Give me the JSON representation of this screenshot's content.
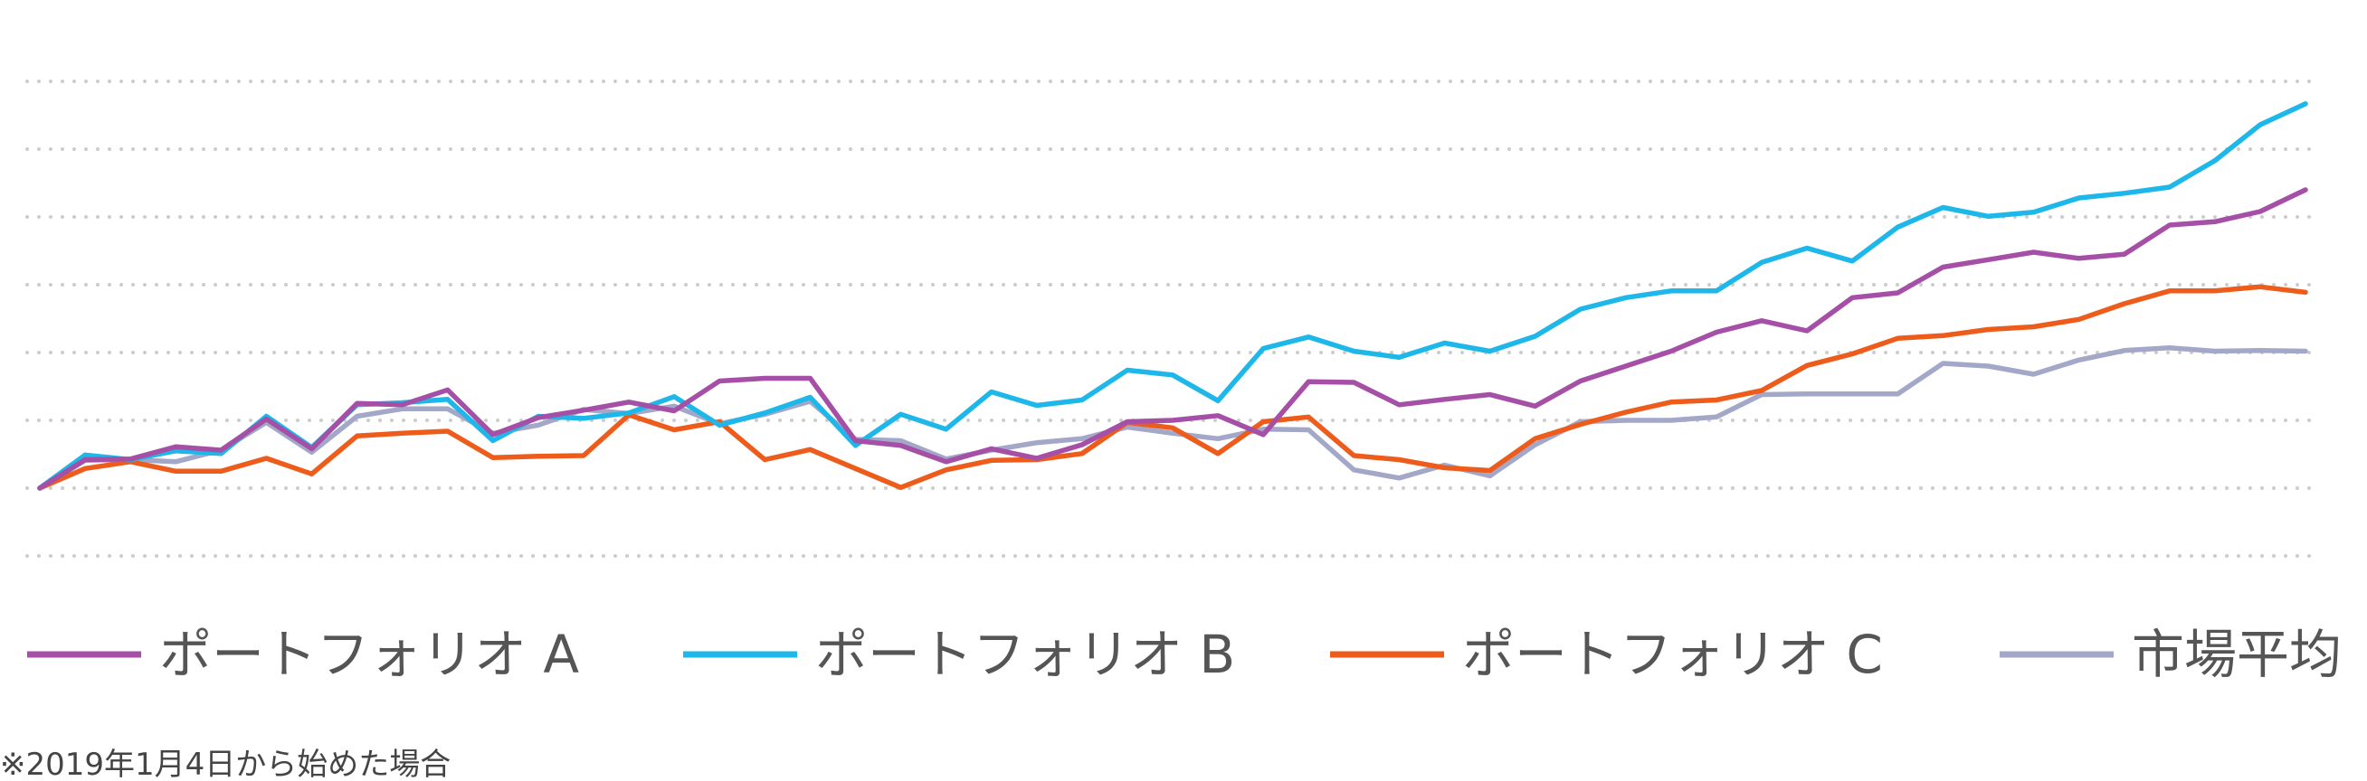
{
  "chart_data": {
    "type": "line",
    "title": "",
    "xlabel": "",
    "ylabel": "",
    "x": [
      0,
      2,
      4,
      6,
      8,
      10,
      12,
      14,
      16,
      18,
      20,
      22,
      24,
      26,
      28,
      30,
      32,
      34,
      36,
      38,
      40,
      42,
      44,
      46,
      48,
      50,
      52,
      54,
      56,
      58,
      60,
      62,
      64,
      66,
      68,
      70,
      72,
      74,
      76,
      78,
      80,
      82,
      84,
      86,
      88,
      90,
      92,
      94,
      96,
      98,
      100
    ],
    "ylim": [
      -1,
      6
    ],
    "grid": true,
    "legend_position": "bottom",
    "series": [
      {
        "name": "ポートフォリオ A",
        "color": "#a54fa7",
        "values": [
          0.0,
          0.42,
          0.43,
          0.61,
          0.56,
          1.02,
          0.58,
          1.25,
          1.23,
          1.45,
          0.79,
          1.04,
          1.15,
          1.27,
          1.14,
          1.58,
          1.62,
          1.62,
          0.7,
          0.63,
          0.39,
          0.58,
          0.44,
          0.64,
          0.98,
          1.0,
          1.07,
          0.79,
          1.57,
          1.56,
          1.23,
          1.31,
          1.38,
          1.21,
          1.58,
          1.8,
          2.02,
          2.3,
          2.47,
          2.32,
          2.81,
          2.88,
          3.26,
          3.37,
          3.48,
          3.39,
          3.45,
          3.88,
          3.93,
          4.08,
          4.4
        ]
      },
      {
        "name": "ポートフォリオ B",
        "color": "#1eb7e9",
        "values": [
          0.0,
          0.49,
          0.42,
          0.55,
          0.51,
          1.06,
          0.6,
          1.23,
          1.26,
          1.31,
          0.7,
          1.06,
          1.03,
          1.11,
          1.35,
          0.93,
          1.11,
          1.34,
          0.63,
          1.09,
          0.87,
          1.42,
          1.22,
          1.3,
          1.74,
          1.67,
          1.29,
          2.06,
          2.23,
          2.02,
          1.93,
          2.14,
          2.02,
          2.24,
          2.64,
          2.81,
          2.91,
          2.91,
          3.33,
          3.54,
          3.35,
          3.85,
          4.14,
          4.01,
          4.07,
          4.28,
          4.35,
          4.44,
          4.83,
          5.36,
          5.67
        ]
      },
      {
        "name": "ポートフォリオ C",
        "color": "#ed5c1b",
        "values": [
          0.0,
          0.29,
          0.39,
          0.25,
          0.25,
          0.44,
          0.21,
          0.77,
          0.81,
          0.84,
          0.45,
          0.47,
          0.48,
          1.08,
          0.86,
          0.98,
          0.42,
          0.57,
          0.29,
          0.01,
          0.27,
          0.41,
          0.42,
          0.51,
          0.97,
          0.89,
          0.51,
          0.98,
          1.05,
          0.48,
          0.42,
          0.3,
          0.26,
          0.73,
          0.94,
          1.12,
          1.27,
          1.3,
          1.44,
          1.81,
          1.98,
          2.21,
          2.25,
          2.34,
          2.38,
          2.49,
          2.72,
          2.91,
          2.91,
          2.97,
          2.89
        ]
      },
      {
        "name": "市場平均",
        "color": "#a3a7c8",
        "values": [
          0.0,
          0.41,
          0.42,
          0.39,
          0.56,
          0.97,
          0.53,
          1.06,
          1.17,
          1.17,
          0.81,
          0.93,
          1.16,
          1.1,
          1.21,
          0.95,
          1.09,
          1.28,
          0.72,
          0.7,
          0.43,
          0.56,
          0.67,
          0.73,
          0.9,
          0.81,
          0.73,
          0.87,
          0.86,
          0.27,
          0.15,
          0.34,
          0.18,
          0.64,
          0.98,
          1.0,
          1.0,
          1.05,
          1.38,
          1.39,
          1.39,
          1.39,
          1.84,
          1.8,
          1.68,
          1.89,
          2.03,
          2.07,
          2.02,
          2.03,
          2.02
        ]
      }
    ]
  },
  "note": "※2019年1月4日から始めた場合"
}
